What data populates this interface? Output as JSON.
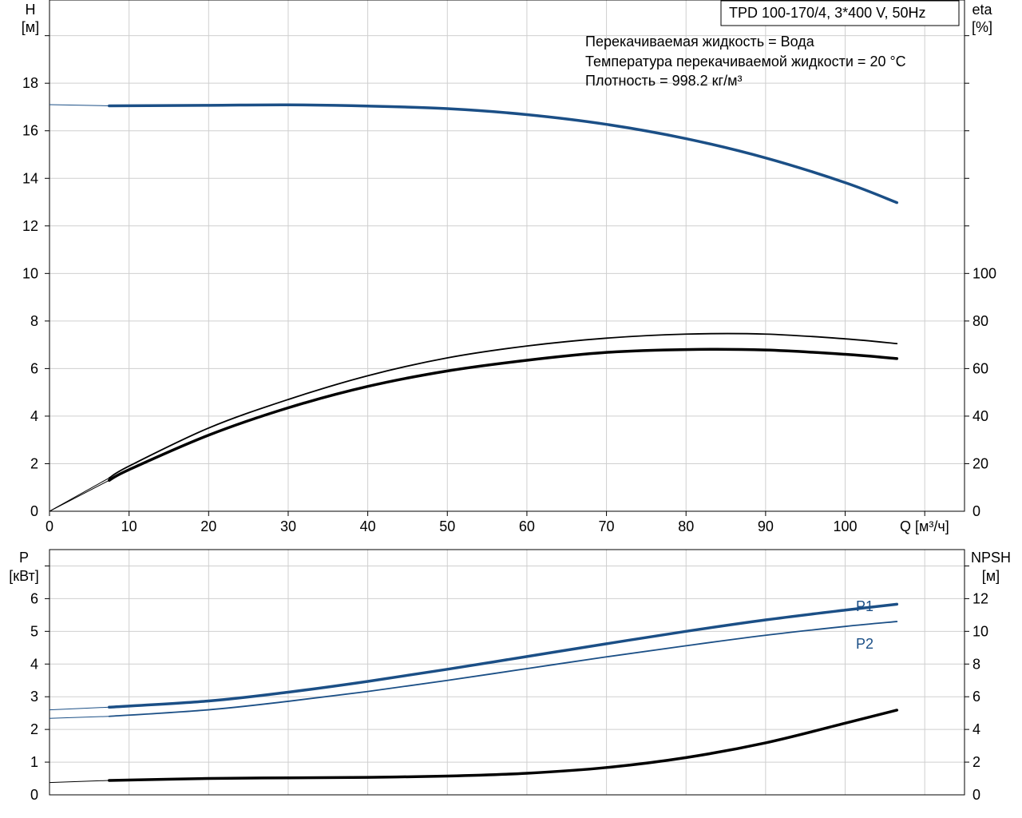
{
  "chart_data": [
    {
      "type": "line",
      "title": "TPD 100-170/4, 3*400 V, 50Hz",
      "annotations": [
        "Перекачиваемая жидкость = Вода",
        "Температура перекачиваемой жидкости = 20 °C",
        "Плотность = 998.2 кг/м³"
      ],
      "xlabel": "Q [м³/ч]",
      "xlim": [
        0,
        115
      ],
      "xticks": [
        "0",
        "10",
        "20",
        "30",
        "40",
        "50",
        "60",
        "70",
        "80",
        "90",
        "100"
      ],
      "ylabel_left": [
        "H",
        "[м]"
      ],
      "ylim_left": [
        0,
        21.5
      ],
      "yticks_left": [
        "0",
        "2",
        "4",
        "6",
        "8",
        "10",
        "12",
        "14",
        "16",
        "18"
      ],
      "ylabel_right": [
        "eta",
        "[%]"
      ],
      "ylim_right": [
        0,
        215
      ],
      "yticks_right": [
        "0",
        "20",
        "40",
        "60",
        "80",
        "100"
      ],
      "grid": true,
      "series": [
        {
          "axis": "left",
          "color": "#1b4f86",
          "width": 3.5,
          "x": [
            7.5,
            20,
            30,
            40,
            50,
            60,
            70,
            80,
            90,
            100,
            106.5
          ],
          "y": [
            17.05,
            17.07,
            17.09,
            17.04,
            16.93,
            16.68,
            16.27,
            15.67,
            14.86,
            13.82,
            12.98
          ],
          "thin_x": [
            0,
            7.5
          ],
          "thin_y": [
            17.1,
            17.05
          ]
        },
        {
          "axis": "right",
          "color": "#000000",
          "width": 1.8,
          "x": [
            7.5,
            10,
            20,
            30,
            40,
            50,
            60,
            70,
            80,
            90,
            100,
            106.5
          ],
          "y": [
            14,
            19,
            35,
            47,
            57,
            64.5,
            69.5,
            72.8,
            74.5,
            74.5,
            72.5,
            70.5
          ],
          "thin_x": [
            0,
            7.5
          ],
          "thin_y": [
            0,
            14
          ]
        },
        {
          "axis": "right",
          "color": "#000000",
          "width": 3.5,
          "x": [
            7.5,
            10,
            20,
            30,
            40,
            50,
            60,
            70,
            80,
            90,
            100,
            106.5
          ],
          "y": [
            13,
            17.5,
            32,
            43.5,
            52.5,
            59,
            63.5,
            66.8,
            68,
            67.8,
            66,
            64.2
          ],
          "thin_x": [
            0,
            7.5
          ],
          "thin_y": [
            0,
            13
          ]
        }
      ]
    },
    {
      "type": "line",
      "xlim": [
        0,
        115
      ],
      "ylabel_left": [
        "P",
        "[кВт]"
      ],
      "ylim_left": [
        0,
        7.5
      ],
      "yticks_left": [
        "0",
        "1",
        "2",
        "3",
        "4",
        "5",
        "6"
      ],
      "ylabel_right": [
        "NPSH",
        "[м]"
      ],
      "ylim_right": [
        0,
        15
      ],
      "yticks_right": [
        "0",
        "2",
        "4",
        "6",
        "8",
        "10",
        "12"
      ],
      "grid": true,
      "series": [
        {
          "name": "P1",
          "axis": "left",
          "color": "#1b4f86",
          "width": 3.5,
          "x": [
            7.5,
            20,
            30,
            40,
            50,
            60,
            70,
            80,
            90,
            100,
            106.5
          ],
          "y": [
            2.68,
            2.87,
            3.14,
            3.47,
            3.84,
            4.23,
            4.62,
            5.0,
            5.35,
            5.65,
            5.83
          ],
          "thin_x": [
            0,
            7.5
          ],
          "thin_y": [
            2.6,
            2.68
          ]
        },
        {
          "name": "P2",
          "axis": "left",
          "color": "#1b4f86",
          "width": 1.8,
          "x": [
            7.5,
            20,
            30,
            40,
            50,
            60,
            70,
            80,
            90,
            100,
            106.5
          ],
          "y": [
            2.4,
            2.6,
            2.86,
            3.16,
            3.5,
            3.86,
            4.22,
            4.56,
            4.88,
            5.15,
            5.3
          ],
          "thin_x": [
            0,
            7.5
          ],
          "thin_y": [
            2.34,
            2.4
          ]
        },
        {
          "axis": "right",
          "color": "#000000",
          "width": 3.5,
          "x": [
            7.5,
            20,
            30,
            40,
            50,
            60,
            70,
            80,
            90,
            100,
            106.5
          ],
          "y": [
            0.88,
            1.0,
            1.04,
            1.07,
            1.15,
            1.32,
            1.67,
            2.28,
            3.18,
            4.38,
            5.18
          ],
          "thin_x": [
            0,
            7.5
          ],
          "thin_y": [
            0.75,
            0.88
          ]
        }
      ]
    }
  ]
}
